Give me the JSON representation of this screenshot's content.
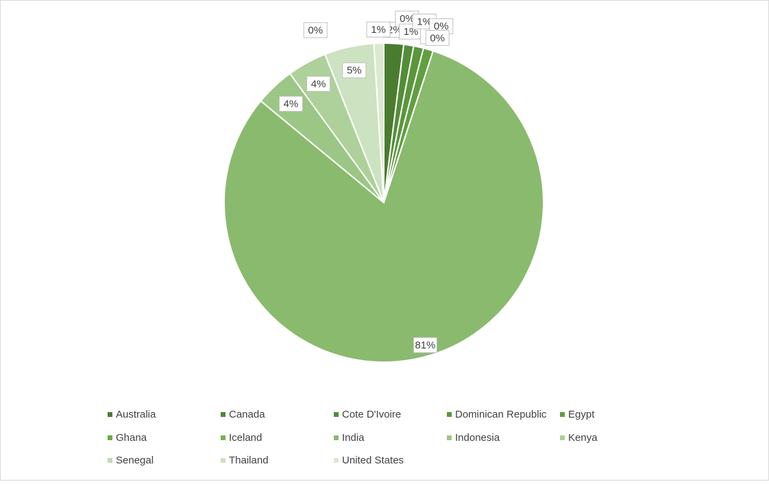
{
  "chart_data": {
    "type": "pie",
    "categories": [
      "Australia",
      "Canada",
      "Cote D'Ivoire",
      "Dominican Republic",
      "Egypt",
      "Ghana",
      "Iceland",
      "India",
      "Indonesia",
      "Kenya",
      "Senegal",
      "Thailand",
      "United States"
    ],
    "values": [
      2,
      0,
      1,
      1,
      1,
      0,
      0,
      81,
      4,
      4,
      0,
      5,
      1
    ],
    "value_labels": [
      "2%",
      "0%",
      "1%",
      "1%",
      "1%",
      "0%",
      "0%",
      "81%",
      "4%",
      "4%",
      "0%",
      "5%",
      "1%"
    ],
    "colors": [
      "#4a7c2f",
      "#4f8534",
      "#548d38",
      "#5a963c",
      "#609f40",
      "#68a948",
      "#74b252",
      "#8aba6e",
      "#9cc686",
      "#aed09a",
      "#bfd9ae",
      "#cde2c0",
      "#dbeacf"
    ],
    "legend": "bottom"
  }
}
